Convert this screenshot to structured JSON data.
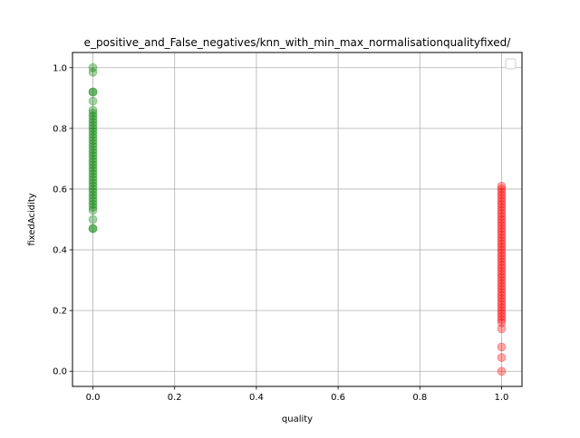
{
  "chart_data": {
    "type": "scatter",
    "title": "e_positive_and_False_negatives/knn_with_min_max_normalisationqualityfixed/",
    "xlabel": "quality",
    "ylabel": "fixedAcidity",
    "xlim": [
      -0.05,
      1.05
    ],
    "ylim": [
      -0.05,
      1.05
    ],
    "xticks": [
      "0.0",
      "0.2",
      "0.4",
      "0.6",
      "0.8",
      "1.0"
    ],
    "yticks": [
      "0.0",
      "0.2",
      "0.4",
      "0.6",
      "0.8",
      "1.0"
    ],
    "grid": true,
    "legend": "upper right (empty)",
    "series": [
      {
        "color": "#008000",
        "alpha": 0.35,
        "x_constant": 0.0,
        "y": [
          1.0,
          0.985,
          0.92,
          0.92,
          0.89,
          0.86,
          0.85,
          0.84,
          0.83,
          0.82,
          0.81,
          0.8,
          0.79,
          0.78,
          0.77,
          0.76,
          0.75,
          0.74,
          0.73,
          0.72,
          0.71,
          0.7,
          0.69,
          0.68,
          0.67,
          0.66,
          0.65,
          0.64,
          0.63,
          0.62,
          0.61,
          0.6,
          0.59,
          0.58,
          0.57,
          0.56,
          0.55,
          0.54,
          0.53,
          0.5,
          0.47,
          0.47
        ]
      },
      {
        "color": "#ff0000",
        "alpha": 0.35,
        "x_constant": 1.0,
        "y": [
          0.61,
          0.6,
          0.59,
          0.58,
          0.57,
          0.56,
          0.55,
          0.54,
          0.53,
          0.52,
          0.51,
          0.5,
          0.49,
          0.48,
          0.47,
          0.46,
          0.45,
          0.44,
          0.43,
          0.42,
          0.41,
          0.4,
          0.39,
          0.38,
          0.37,
          0.36,
          0.35,
          0.34,
          0.33,
          0.32,
          0.31,
          0.3,
          0.29,
          0.28,
          0.27,
          0.26,
          0.25,
          0.24,
          0.23,
          0.22,
          0.21,
          0.2,
          0.19,
          0.18,
          0.17,
          0.16,
          0.14,
          0.08,
          0.045,
          0.0
        ]
      }
    ]
  }
}
